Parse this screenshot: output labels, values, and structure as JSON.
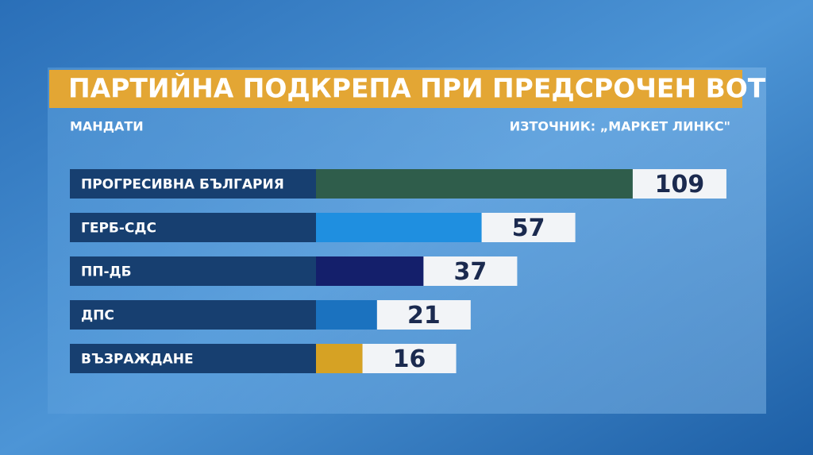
{
  "chart_data": {
    "type": "bar",
    "orientation": "horizontal",
    "title": "ПАРТИЙНА ПОДКРЕПА ПРИ ПРЕДСРОЧЕН ВОТ",
    "subtitle": "МАНДАТИ",
    "source": "ИЗТОЧНИК: „МАРКЕТ ЛИНКС\"",
    "categories": [
      "ПРОГРЕСИВНА БЪЛГАРИЯ",
      "ГЕРБ-СДС",
      "ПП-ДБ",
      "ДПС",
      "ВЪЗРАЖДАНЕ"
    ],
    "values": [
      109,
      57,
      37,
      21,
      16
    ],
    "colors": [
      "#2f5d4b",
      "#1f8fe0",
      "#141f6b",
      "#1b72bf",
      "#d6a224"
    ]
  }
}
